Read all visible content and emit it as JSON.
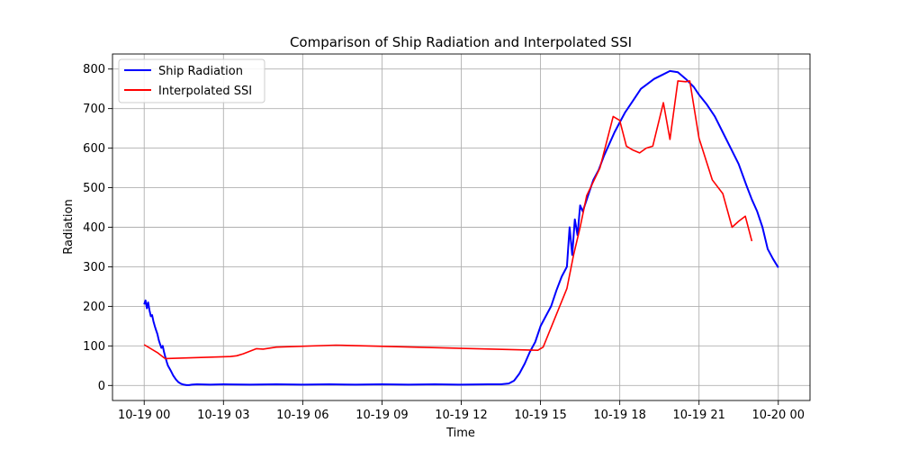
{
  "chart_data": {
    "type": "line",
    "title": "Comparison of Ship Radiation and Interpolated SSI",
    "xlabel": "Time",
    "ylabel": "Radiation",
    "x_ticks": [
      "10-19 00",
      "10-19 03",
      "10-19 06",
      "10-19 09",
      "10-19 12",
      "10-19 15",
      "10-19 18",
      "10-19 21",
      "10-20 00"
    ],
    "y_ticks": [
      "0",
      "100",
      "200",
      "300",
      "400",
      "500",
      "600",
      "700",
      "800"
    ],
    "ylim": [
      -38,
      838
    ],
    "xlim_hours": [
      -1.2,
      25.2
    ],
    "grid": true,
    "legend": {
      "position": "top-left",
      "entries": [
        "Ship Radiation",
        "Interpolated SSI"
      ]
    },
    "series": [
      {
        "name": "Ship Radiation",
        "color": "#0000ff",
        "x_hours": [
          0.0,
          0.05,
          0.1,
          0.15,
          0.2,
          0.25,
          0.3,
          0.35,
          0.4,
          0.45,
          0.5,
          0.55,
          0.6,
          0.65,
          0.7,
          0.75,
          0.8,
          0.85,
          0.9,
          1.0,
          1.1,
          1.2,
          1.3,
          1.4,
          1.5,
          1.6,
          1.7,
          1.8,
          2.0,
          2.5,
          3.0,
          4.0,
          5.0,
          6.0,
          7.0,
          8.0,
          9.0,
          10.0,
          11.0,
          12.0,
          13.0,
          13.5,
          13.8,
          14.0,
          14.2,
          14.4,
          14.6,
          14.8,
          15.0,
          15.2,
          15.4,
          15.6,
          15.8,
          16.0,
          16.1,
          16.2,
          16.3,
          16.4,
          16.5,
          16.6,
          16.8,
          17.0,
          17.2,
          17.4,
          17.6,
          17.8,
          18.0,
          18.2,
          18.5,
          18.8,
          19.0,
          19.3,
          19.6,
          19.9,
          20.2,
          20.5,
          20.8,
          21.0,
          21.3,
          21.6,
          21.9,
          22.2,
          22.5,
          22.8,
          23.0,
          23.2,
          23.4,
          23.6,
          23.8,
          24.0
        ],
        "y": [
          205,
          215,
          195,
          210,
          190,
          175,
          178,
          162,
          150,
          140,
          130,
          115,
          105,
          95,
          100,
          85,
          72,
          60,
          50,
          38,
          25,
          15,
          8,
          4,
          2,
          1,
          1,
          2,
          3,
          2,
          3,
          2,
          3,
          2,
          3,
          2,
          3,
          2,
          3,
          2,
          3,
          3,
          5,
          12,
          30,
          55,
          85,
          110,
          150,
          175,
          200,
          240,
          275,
          300,
          400,
          330,
          420,
          380,
          455,
          440,
          480,
          520,
          545,
          580,
          610,
          640,
          665,
          690,
          720,
          750,
          760,
          775,
          785,
          795,
          792,
          775,
          755,
          735,
          710,
          680,
          640,
          600,
          560,
          505,
          470,
          440,
          400,
          345,
          320,
          298
        ]
      },
      {
        "name": "Interpolated SSI",
        "color": "#ff0000",
        "x_hours": [
          0.0,
          0.5,
          0.75,
          0.8,
          3.25,
          3.5,
          3.75,
          4.25,
          4.5,
          5.0,
          7.25,
          14.9,
          15.1,
          16.0,
          16.25,
          16.5,
          16.75,
          17.25,
          17.75,
          18.0,
          18.25,
          18.5,
          18.75,
          19.0,
          19.25,
          19.65,
          19.9,
          20.2,
          20.5,
          20.65,
          21.0,
          21.5,
          21.9,
          22.25,
          22.5,
          22.75,
          23.0
        ],
        "y": [
          103,
          83,
          70,
          68,
          73,
          75,
          80,
          93,
          92,
          97,
          102,
          89,
          97,
          245,
          330,
          400,
          480,
          550,
          680,
          670,
          605,
          595,
          588,
          600,
          605,
          715,
          622,
          770,
          768,
          770,
          625,
          520,
          485,
          400,
          415,
          428,
          365
        ]
      }
    ]
  }
}
